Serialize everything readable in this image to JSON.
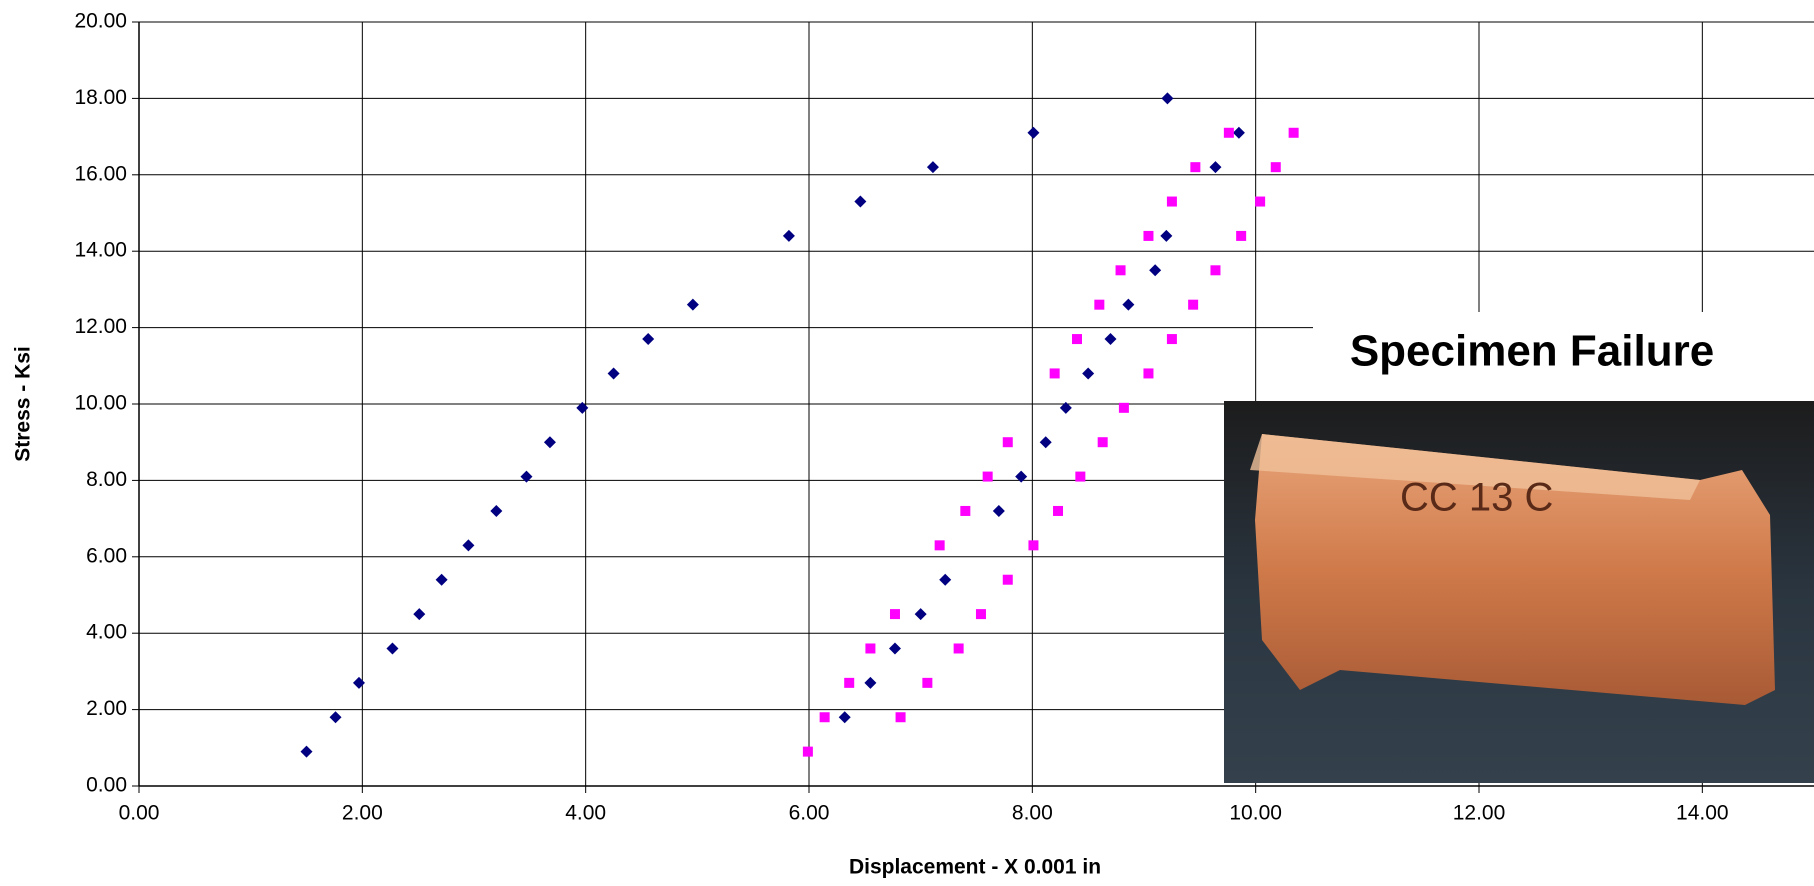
{
  "chart_data": {
    "type": "scatter",
    "x_label": "Displacement - X 0.001 in",
    "y_label": "Stress - Ksi",
    "annotation": "Specimen Failure",
    "xlim": [
      0,
      15
    ],
    "ylim": [
      0,
      20
    ],
    "grid": true,
    "xticks": [
      {
        "value": 0,
        "label": "0.00"
      },
      {
        "value": 2,
        "label": "2.00"
      },
      {
        "value": 4,
        "label": "4.00"
      },
      {
        "value": 6,
        "label": "6.00"
      },
      {
        "value": 8,
        "label": "8.00"
      },
      {
        "value": 10,
        "label": "10.00"
      },
      {
        "value": 12,
        "label": "12.00"
      },
      {
        "value": 14,
        "label": "14.00"
      }
    ],
    "yticks": [
      {
        "value": 0,
        "label": "0.00"
      },
      {
        "value": 2,
        "label": "2.00"
      },
      {
        "value": 4,
        "label": "4.00"
      },
      {
        "value": 6,
        "label": "6.00"
      },
      {
        "value": 8,
        "label": "8.00"
      },
      {
        "value": 10,
        "label": "10.00"
      },
      {
        "value": 12,
        "label": "12.00"
      },
      {
        "value": 14,
        "label": "14.00"
      },
      {
        "value": 16,
        "label": "16.00"
      },
      {
        "value": 18,
        "label": "18.00"
      },
      {
        "value": 20,
        "label": "20.00"
      }
    ],
    "series": [
      {
        "color": "#000080",
        "marker": "diamond",
        "x": [
          1.5,
          1.76,
          1.97,
          2.27,
          2.51,
          2.71,
          2.95,
          3.2,
          3.47,
          3.68,
          3.97,
          4.25,
          4.56,
          4.96,
          5.82,
          6.46,
          7.11,
          8.01,
          9.21,
          9.85,
          9.64,
          9.2,
          9.1,
          8.86,
          8.7,
          8.5,
          8.3,
          8.12,
          7.9,
          7.7,
          7.22,
          7.0,
          6.77,
          6.55,
          6.32
        ],
        "values": [
          0.9,
          1.8,
          2.7,
          3.6,
          4.5,
          5.4,
          6.3,
          7.2,
          8.1,
          9.0,
          9.9,
          10.8,
          11.7,
          12.6,
          14.4,
          15.3,
          16.2,
          17.1,
          18.0,
          17.1,
          16.2,
          14.4,
          13.5,
          12.6,
          11.7,
          10.8,
          9.9,
          9.0,
          8.1,
          7.2,
          5.4,
          4.5,
          3.6,
          2.7,
          1.8
        ]
      },
      {
        "color": "#ff00ff",
        "marker": "square",
        "x": [
          5.99,
          6.14,
          6.36,
          6.55,
          6.77,
          7.17,
          7.4,
          7.6,
          7.78,
          8.2,
          8.4,
          8.6,
          8.79,
          9.04,
          9.25,
          9.46,
          9.76,
          10.34,
          10.18,
          10.04,
          9.87,
          9.64,
          9.44,
          9.25,
          9.04,
          8.82,
          8.63,
          8.43,
          8.23,
          8.01,
          7.78,
          7.54,
          7.34,
          7.06,
          6.82
        ],
        "values": [
          0.9,
          1.8,
          2.7,
          3.6,
          4.5,
          6.3,
          7.2,
          8.1,
          9.0,
          10.8,
          11.7,
          12.6,
          13.5,
          14.4,
          15.3,
          16.2,
          17.1,
          17.1,
          16.2,
          15.3,
          14.4,
          13.5,
          12.6,
          11.7,
          10.8,
          9.9,
          9.0,
          8.1,
          7.2,
          6.3,
          5.4,
          4.5,
          3.6,
          2.7,
          1.8
        ]
      }
    ]
  }
}
